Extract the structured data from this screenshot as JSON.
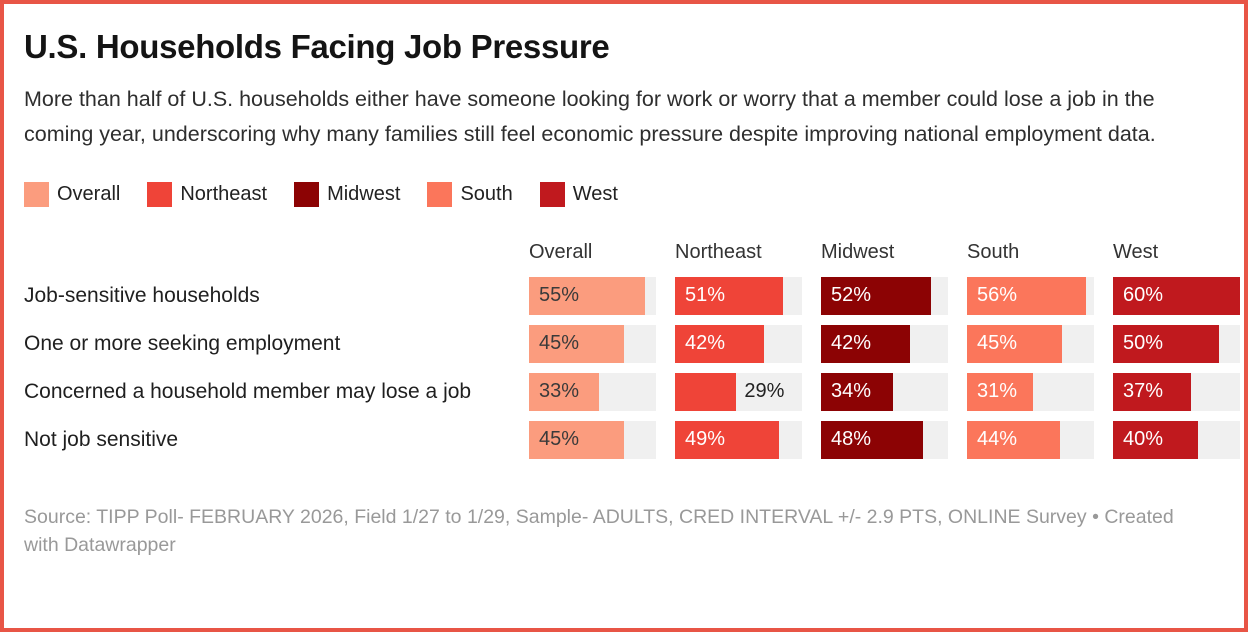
{
  "header": {
    "title": "U.S. Households Facing Job Pressure",
    "description": "More than half of U.S. households either have someone looking for work or worry that a member could lose a job in the coming year, underscoring why many families still feel economic pressure despite improving national employment data."
  },
  "colors": {
    "frame_border": "#e85546",
    "bar_track": "#f0f0f0",
    "overall_value_text": "#3a3a3a",
    "light_value_text": "#ffffff"
  },
  "chart_data": {
    "type": "bar",
    "title": "U.S. Households Facing Job Pressure",
    "categories": [
      "Job-sensitive households",
      "One or more seeking employment",
      "Concerned a household member may lose a job",
      "Not job sensitive"
    ],
    "series": [
      {
        "name": "Overall",
        "color": "#fb9c7e",
        "value_text_color": "#3a3a3a",
        "values": [
          55,
          45,
          33,
          45
        ]
      },
      {
        "name": "Northeast",
        "color": "#ef4438",
        "value_text_color": "#ffffff",
        "values": [
          51,
          42,
          29,
          49
        ]
      },
      {
        "name": "Midwest",
        "color": "#8c0304",
        "value_text_color": "#ffffff",
        "values": [
          52,
          42,
          34,
          48
        ]
      },
      {
        "name": "South",
        "color": "#fb765b",
        "value_text_color": "#ffffff",
        "values": [
          56,
          45,
          31,
          44
        ]
      },
      {
        "name": "West",
        "color": "#c0191e",
        "value_text_color": "#ffffff",
        "values": [
          60,
          50,
          37,
          40
        ]
      }
    ],
    "value_suffix": "%",
    "xlim": [
      0,
      60
    ],
    "grid": false,
    "legend_position": "top",
    "column_headers": [
      "Overall",
      "Northeast",
      "Midwest",
      "South",
      "West"
    ]
  },
  "footer": {
    "source": "Source: TIPP Poll- FEBRUARY 2026, Field 1/27 to 1/29, Sample- ADULTS, CRED INTERVAL +/- 2.9 PTS, ONLINE Survey",
    "separator": " • ",
    "attribution": "Created with Datawrapper"
  }
}
